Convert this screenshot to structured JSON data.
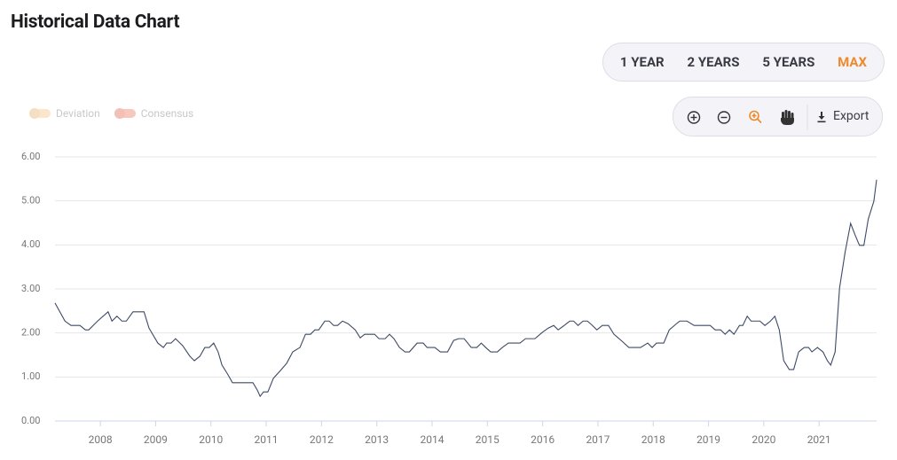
{
  "chart_data": {
    "type": "line",
    "title": "Historical Data Chart",
    "range_buttons": [
      "1 YEAR",
      "2 YEARS",
      "5 YEARS",
      "MAX"
    ],
    "active_range": 3,
    "toggles": [
      {
        "label": "Deviation",
        "color": "#fbe6c9"
      },
      {
        "label": "Consensus",
        "color": "#f8c7bd"
      }
    ],
    "export_label": "Export",
    "color": "#3d4a66",
    "grid": true,
    "xlim": [
      2007.18,
      2022.04
    ],
    "xticks": [
      2008,
      2009,
      2010,
      2011,
      2012,
      2013,
      2014,
      2015,
      2016,
      2017,
      2018,
      2019,
      2020,
      2021
    ],
    "ylim": [
      0,
      6
    ],
    "yticks": [
      {
        "value": 0,
        "label": "0.00"
      },
      {
        "value": 1,
        "label": "1.00"
      },
      {
        "value": 2,
        "label": "2.00"
      },
      {
        "value": 3,
        "label": "3.00"
      },
      {
        "value": 4,
        "label": "4.00"
      },
      {
        "value": 5,
        "label": "5.00"
      },
      {
        "value": 6,
        "label": "6.00"
      }
    ],
    "x": [
      2007.18,
      2007.36,
      2007.47,
      2007.63,
      2007.73,
      2007.79,
      2007.95,
      2008.14,
      2008.21,
      2008.3,
      2008.39,
      2008.47,
      2008.59,
      2008.79,
      2008.88,
      2009.04,
      2009.14,
      2009.2,
      2009.28,
      2009.36,
      2009.49,
      2009.62,
      2009.7,
      2009.8,
      2009.89,
      2009.97,
      2010.05,
      2010.13,
      2010.2,
      2010.3,
      2010.39,
      2010.65,
      2010.76,
      2010.84,
      2010.89,
      2010.95,
      2011.03,
      2011.13,
      2011.26,
      2011.37,
      2011.48,
      2011.61,
      2011.71,
      2011.8,
      2011.88,
      2011.95,
      2012.06,
      2012.14,
      2012.22,
      2012.29,
      2012.38,
      2012.48,
      2012.61,
      2012.7,
      2012.78,
      2012.96,
      2013.04,
      2013.15,
      2013.23,
      2013.31,
      2013.41,
      2013.51,
      2013.59,
      2013.73,
      2013.84,
      2013.91,
      2014.05,
      2014.15,
      2014.28,
      2014.39,
      2014.48,
      2014.58,
      2014.71,
      2014.81,
      2014.89,
      2014.97,
      2015.06,
      2015.18,
      2015.27,
      2015.38,
      2015.59,
      2015.69,
      2015.86,
      2015.99,
      2016.1,
      2016.2,
      2016.28,
      2016.39,
      2016.49,
      2016.56,
      2016.64,
      2016.73,
      2016.81,
      2016.9,
      2016.98,
      2017.08,
      2017.19,
      2017.29,
      2017.42,
      2017.56,
      2017.77,
      2017.9,
      2017.98,
      2018.06,
      2018.19,
      2018.29,
      2018.42,
      2018.48,
      2018.61,
      2018.74,
      2019.03,
      2019.12,
      2019.22,
      2019.3,
      2019.38,
      2019.46,
      2019.56,
      2019.62,
      2019.7,
      2019.77,
      2019.93,
      2020.02,
      2020.12,
      2020.2,
      2020.28,
      2020.36,
      2020.46,
      2020.54,
      2020.63,
      2020.73,
      2020.81,
      2020.87,
      2020.97,
      2021.07,
      2021.15,
      2021.21,
      2021.29,
      2021.37,
      2021.47,
      2021.57,
      2021.65,
      2021.73,
      2021.81,
      2021.89,
      2021.99,
      2022.04
    ],
    "values": [
      2.68,
      2.27,
      2.17,
      2.17,
      2.07,
      2.07,
      2.27,
      2.48,
      2.27,
      2.38,
      2.27,
      2.27,
      2.48,
      2.48,
      2.11,
      1.77,
      1.67,
      1.77,
      1.77,
      1.87,
      1.71,
      1.47,
      1.37,
      1.47,
      1.67,
      1.67,
      1.77,
      1.57,
      1.27,
      1.07,
      0.87,
      0.87,
      0.87,
      0.7,
      0.56,
      0.66,
      0.66,
      0.97,
      1.15,
      1.31,
      1.57,
      1.67,
      1.97,
      1.97,
      2.07,
      2.07,
      2.27,
      2.27,
      2.17,
      2.17,
      2.27,
      2.21,
      2.07,
      1.89,
      1.97,
      1.97,
      1.87,
      1.87,
      1.97,
      1.87,
      1.67,
      1.57,
      1.57,
      1.77,
      1.77,
      1.67,
      1.67,
      1.57,
      1.57,
      1.83,
      1.87,
      1.87,
      1.67,
      1.67,
      1.77,
      1.67,
      1.57,
      1.57,
      1.67,
      1.77,
      1.77,
      1.87,
      1.87,
      2.01,
      2.11,
      2.17,
      2.07,
      2.17,
      2.27,
      2.27,
      2.17,
      2.27,
      2.27,
      2.17,
      2.07,
      2.17,
      2.17,
      1.97,
      1.83,
      1.67,
      1.67,
      1.77,
      1.67,
      1.77,
      1.77,
      2.07,
      2.21,
      2.27,
      2.27,
      2.17,
      2.17,
      2.07,
      2.07,
      1.97,
      2.07,
      1.97,
      2.17,
      2.17,
      2.38,
      2.27,
      2.27,
      2.17,
      2.27,
      2.38,
      2.07,
      1.37,
      1.17,
      1.17,
      1.57,
      1.67,
      1.67,
      1.57,
      1.67,
      1.57,
      1.37,
      1.27,
      1.57,
      3.02,
      3.83,
      4.49,
      4.23,
      3.99,
      3.99,
      4.59,
      4.99,
      5.48
    ]
  }
}
